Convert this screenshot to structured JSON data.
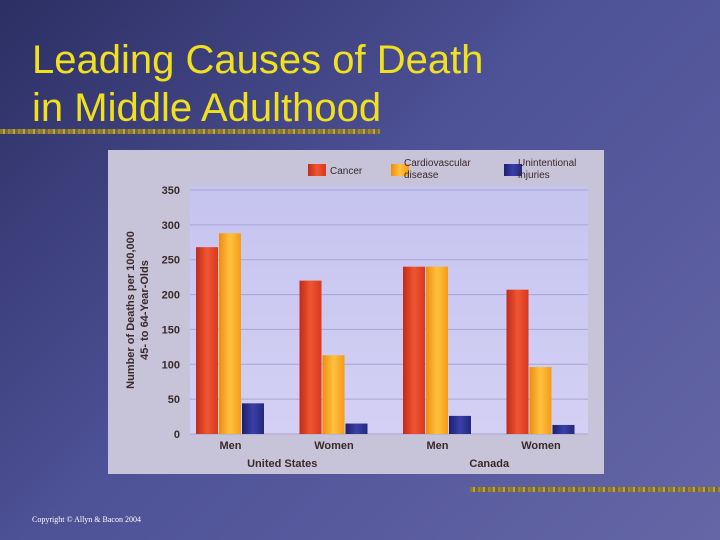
{
  "slide": {
    "title_line1": "Leading Causes of Death",
    "title_line2": "in Middle Adulthood",
    "copyright": "Copyright © Allyn & Bacon 2004"
  },
  "colors": {
    "cancer": "#e0452a",
    "cardiovascular": "#f5a020",
    "unintentional": "#2b2f88",
    "plot_bg": "#ccc8f2",
    "accent_title": "#f0e020"
  },
  "chart_data": {
    "type": "bar",
    "title": "",
    "ylabel_line1": "Number of Deaths per 100,000",
    "ylabel_line2": "45- to 64-Year-Olds",
    "xlabel": "",
    "ylim": [
      0,
      350
    ],
    "yticks": [
      0,
      50,
      100,
      150,
      200,
      250,
      300,
      350
    ],
    "grid": true,
    "legend_position": "top",
    "categories": [
      "Men",
      "Women",
      "Men",
      "Women"
    ],
    "groups": [
      {
        "label": "United States",
        "categories": [
          0,
          1
        ]
      },
      {
        "label": "Canada",
        "categories": [
          2,
          3
        ]
      }
    ],
    "series": [
      {
        "name": "Cancer",
        "values": [
          268,
          220,
          240,
          207
        ]
      },
      {
        "name": "Cardiovascular disease",
        "values": [
          288,
          113,
          240,
          96
        ]
      },
      {
        "name": "Unintentional injuries",
        "values": [
          44,
          15,
          26,
          13
        ]
      }
    ]
  }
}
